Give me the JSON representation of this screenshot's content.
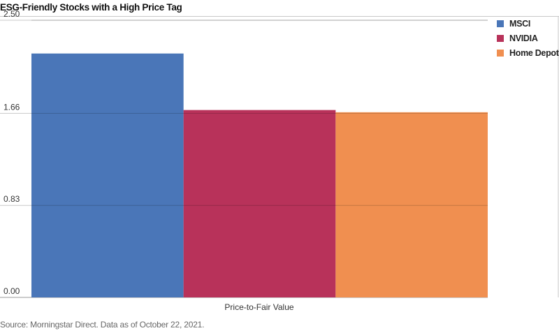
{
  "chart_data": {
    "type": "bar",
    "title": "ESG-Friendly Stocks with a High Price Tag",
    "categories": [
      "Price-to-Fair Value"
    ],
    "series": [
      {
        "name": "MSCI",
        "values": [
          2.2
        ],
        "color": "#4a76b8"
      },
      {
        "name": "NVIDIA",
        "values": [
          1.69
        ],
        "color": "#b8325a"
      },
      {
        "name": "Home Depot",
        "values": [
          1.67
        ],
        "color": "#f08f50"
      }
    ],
    "ylim": [
      0,
      2.5
    ],
    "yticks": [
      "0.00",
      "0.83",
      "1.66",
      "2.50"
    ],
    "xlabel": "Price-to-Fair Value",
    "ylabel": "",
    "grid": true,
    "legend_position": "top-right"
  },
  "footer": {
    "source": "Source: Morningstar Direct.  Data as of October 22, 2021."
  }
}
